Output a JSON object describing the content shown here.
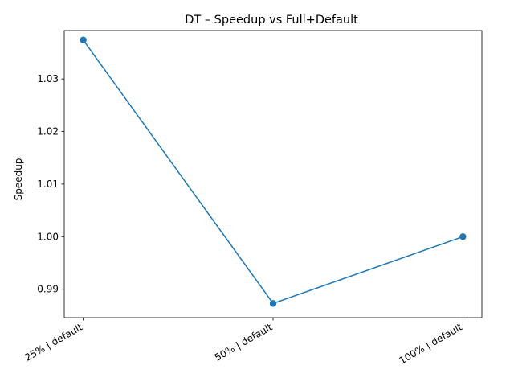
{
  "chart_data": {
    "type": "line",
    "title": "DT – Speedup vs Full+Default",
    "xlabel": "",
    "ylabel": "Speedup",
    "categories": [
      "25% | default",
      "50% | default",
      "100% | default"
    ],
    "series": [
      {
        "values": [
          1.0374,
          0.9873,
          1.0
        ]
      }
    ],
    "yticks": [
      0.99,
      1.0,
      1.01,
      1.02,
      1.03
    ],
    "ytick_labels": [
      "0.99",
      "1.00",
      "1.01",
      "1.02",
      "1.03"
    ],
    "ylim": [
      0.9846,
      1.0392
    ],
    "grid": false,
    "legend": "none",
    "line_color": "#1f77b4",
    "marker": "circle"
  }
}
